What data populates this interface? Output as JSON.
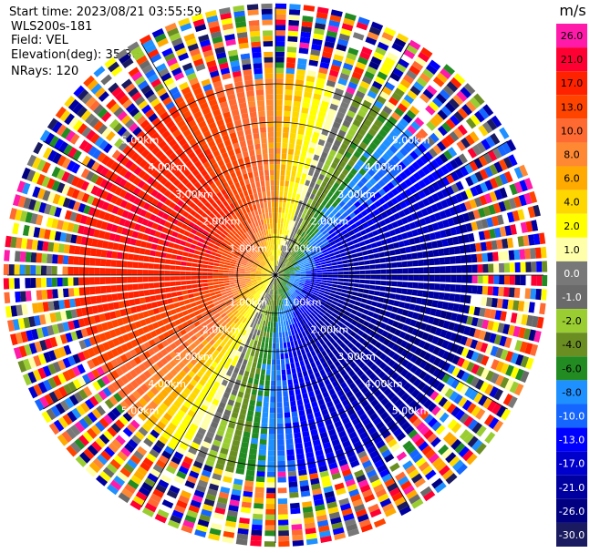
{
  "header": {
    "start_time": "Start time: 2023/08/21 03:55:59",
    "instrument": "WLS200s-181",
    "field": "Field: VEL",
    "elevation": "Elevation(deg): 35.30",
    "nrays": "NRays: 120"
  },
  "chart_data": {
    "type": "ppi",
    "field": "VEL",
    "units": "m/s",
    "n_rays": 120,
    "elevation_deg": 35.3,
    "range_rings_km": [
      1,
      2,
      3,
      4,
      5
    ],
    "range_ring_labels": [
      "1.00km",
      "2.00km",
      "3.00km",
      "4.00km",
      "5.00km"
    ],
    "max_range_km": 7,
    "colorbar": {
      "title": "m/s",
      "tick_labels": [
        "26.0",
        "21.0",
        "17.0",
        "13.0",
        "10.0",
        "8.0",
        "6.0",
        "4.0",
        "2.0",
        "1.0",
        "0.0",
        "-1.0",
        "-2.0",
        "-4.0",
        "-6.0",
        "-8.0",
        "-10.0",
        "-13.0",
        "-17.0",
        "-21.0",
        "-26.0",
        "-30.0"
      ],
      "colors": [
        "#ff1aaa",
        "#ff0033",
        "#ff2200",
        "#ff4400",
        "#ff6a33",
        "#ff8833",
        "#ffaa00",
        "#ffd700",
        "#ffff00",
        "#ffffaa",
        "#787878",
        "#6a6a6a",
        "#9acd32",
        "#6b8e23",
        "#228b22",
        "#1e90ff",
        "#1565ff",
        "#0000ff",
        "#0000cd",
        "#0000a0",
        "#000080",
        "#1a1a60"
      ]
    },
    "wind_pattern": {
      "receding_direction_deg": 292,
      "peak_speed_ms": 21,
      "noise_range_km": 5.2
    }
  }
}
